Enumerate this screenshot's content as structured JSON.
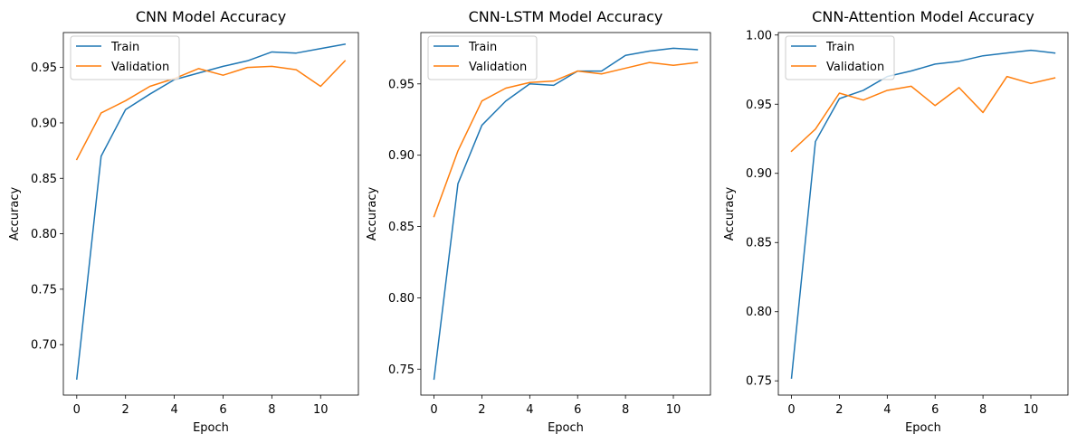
{
  "chart_data": [
    {
      "type": "line",
      "title": "CNN Model Accuracy",
      "xlabel": "Epoch",
      "ylabel": "Accuracy",
      "x": [
        0,
        1,
        2,
        3,
        4,
        5,
        6,
        7,
        8,
        9,
        10,
        11
      ],
      "xlim": [
        -0.55,
        11.55
      ],
      "ylim": [
        0.6545,
        0.9815
      ],
      "xticks": [
        0,
        2,
        4,
        6,
        8,
        10
      ],
      "xtick_labels": [
        "0",
        "2",
        "4",
        "6",
        "8",
        "10"
      ],
      "yticks": [
        0.7,
        0.75,
        0.8,
        0.85,
        0.9,
        0.95
      ],
      "ytick_labels": [
        "0.70",
        "0.75",
        "0.80",
        "0.85",
        "0.90",
        "0.95"
      ],
      "grid": false,
      "legend_position": "upper-left",
      "series": [
        {
          "name": "Train",
          "color": "#1f77b4",
          "values": [
            0.669,
            0.87,
            0.912,
            0.926,
            0.939,
            0.945,
            0.951,
            0.956,
            0.964,
            0.963,
            0.967,
            0.971
          ]
        },
        {
          "name": "Validation",
          "color": "#ff7f0e",
          "values": [
            0.867,
            0.909,
            0.92,
            0.933,
            0.94,
            0.949,
            0.943,
            0.95,
            0.951,
            0.948,
            0.933,
            0.956
          ]
        }
      ]
    },
    {
      "type": "line",
      "title": "CNN-LSTM Model Accuracy",
      "xlabel": "Epoch",
      "ylabel": "Accuracy",
      "x": [
        0,
        1,
        2,
        3,
        4,
        5,
        6,
        7,
        8,
        9,
        10,
        11
      ],
      "xlim": [
        -0.55,
        11.55
      ],
      "ylim": [
        0.7318,
        0.986
      ],
      "xticks": [
        0,
        2,
        4,
        6,
        8,
        10
      ],
      "xtick_labels": [
        "0",
        "2",
        "4",
        "6",
        "8",
        "10"
      ],
      "yticks": [
        0.75,
        0.8,
        0.85,
        0.9,
        0.95
      ],
      "ytick_labels": [
        "0.75",
        "0.80",
        "0.85",
        "0.90",
        "0.95"
      ],
      "grid": false,
      "legend_position": "upper-left",
      "series": [
        {
          "name": "Train",
          "color": "#1f77b4",
          "values": [
            0.743,
            0.88,
            0.921,
            0.938,
            0.95,
            0.949,
            0.959,
            0.959,
            0.97,
            0.973,
            0.975,
            0.974
          ]
        },
        {
          "name": "Validation",
          "color": "#ff7f0e",
          "values": [
            0.857,
            0.903,
            0.938,
            0.947,
            0.951,
            0.952,
            0.959,
            0.957,
            0.961,
            0.965,
            0.963,
            0.965
          ]
        }
      ]
    },
    {
      "type": "line",
      "title": "CNN-Attention Model Accuracy",
      "xlabel": "Epoch",
      "ylabel": "Accuracy",
      "x": [
        0,
        1,
        2,
        3,
        4,
        5,
        6,
        7,
        8,
        9,
        10,
        11
      ],
      "xlim": [
        -0.55,
        11.55
      ],
      "ylim": [
        0.7397,
        1.0018
      ],
      "xticks": [
        0,
        2,
        4,
        6,
        8,
        10
      ],
      "xtick_labels": [
        "0",
        "2",
        "4",
        "6",
        "8",
        "10"
      ],
      "yticks": [
        0.75,
        0.8,
        0.85,
        0.9,
        0.95,
        1.0
      ],
      "ytick_labels": [
        "0.75",
        "0.80",
        "0.85",
        "0.90",
        "0.95",
        "1.00"
      ],
      "grid": false,
      "legend_position": "upper-left",
      "series": [
        {
          "name": "Train",
          "color": "#1f77b4",
          "values": [
            0.752,
            0.923,
            0.954,
            0.96,
            0.97,
            0.974,
            0.979,
            0.981,
            0.985,
            0.987,
            0.989,
            0.987
          ]
        },
        {
          "name": "Validation",
          "color": "#ff7f0e",
          "values": [
            0.916,
            0.932,
            0.958,
            0.953,
            0.96,
            0.963,
            0.949,
            0.962,
            0.944,
            0.97,
            0.965,
            0.969
          ]
        }
      ]
    }
  ]
}
